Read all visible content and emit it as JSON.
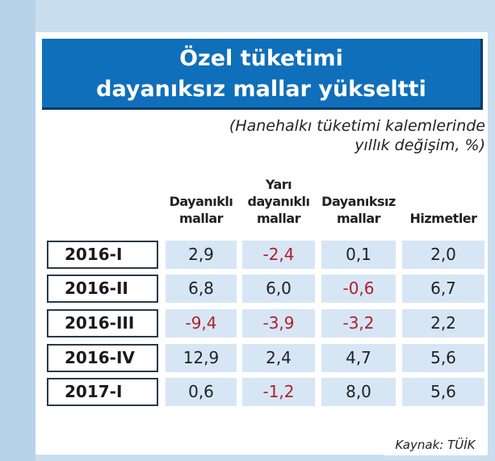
{
  "header": {
    "title_lines": [
      "Özel tüketimi",
      "dayanıksız mallar yükseltti"
    ],
    "subtitle_lines": [
      "(Hanehalkı tüketimi kalemlerinde",
      "yıllık değişim, %)"
    ]
  },
  "table": {
    "columns": [
      [
        "Dayanıklı",
        "mallar"
      ],
      [
        "Yarı",
        "dayanıklı",
        "mallar"
      ],
      [
        "Dayanıksız",
        "mallar"
      ],
      [
        "Hizmetler"
      ]
    ],
    "rows": [
      [
        "2016-I",
        "2,9",
        "-2,4",
        "0,1",
        "2,0"
      ],
      [
        "2016-II",
        "6,8",
        "6,0",
        "-0,6",
        "6,7"
      ],
      [
        "2016-III",
        "-9,4",
        "-3,9",
        "-3,2",
        "2,2"
      ],
      [
        "2016-IV",
        "12,9",
        "2,4",
        "4,7",
        "5,6"
      ],
      [
        "2017-I",
        "0,6",
        "-1,2",
        "8,0",
        "5,6"
      ]
    ]
  },
  "source": "Kaynak: TÜİK"
}
